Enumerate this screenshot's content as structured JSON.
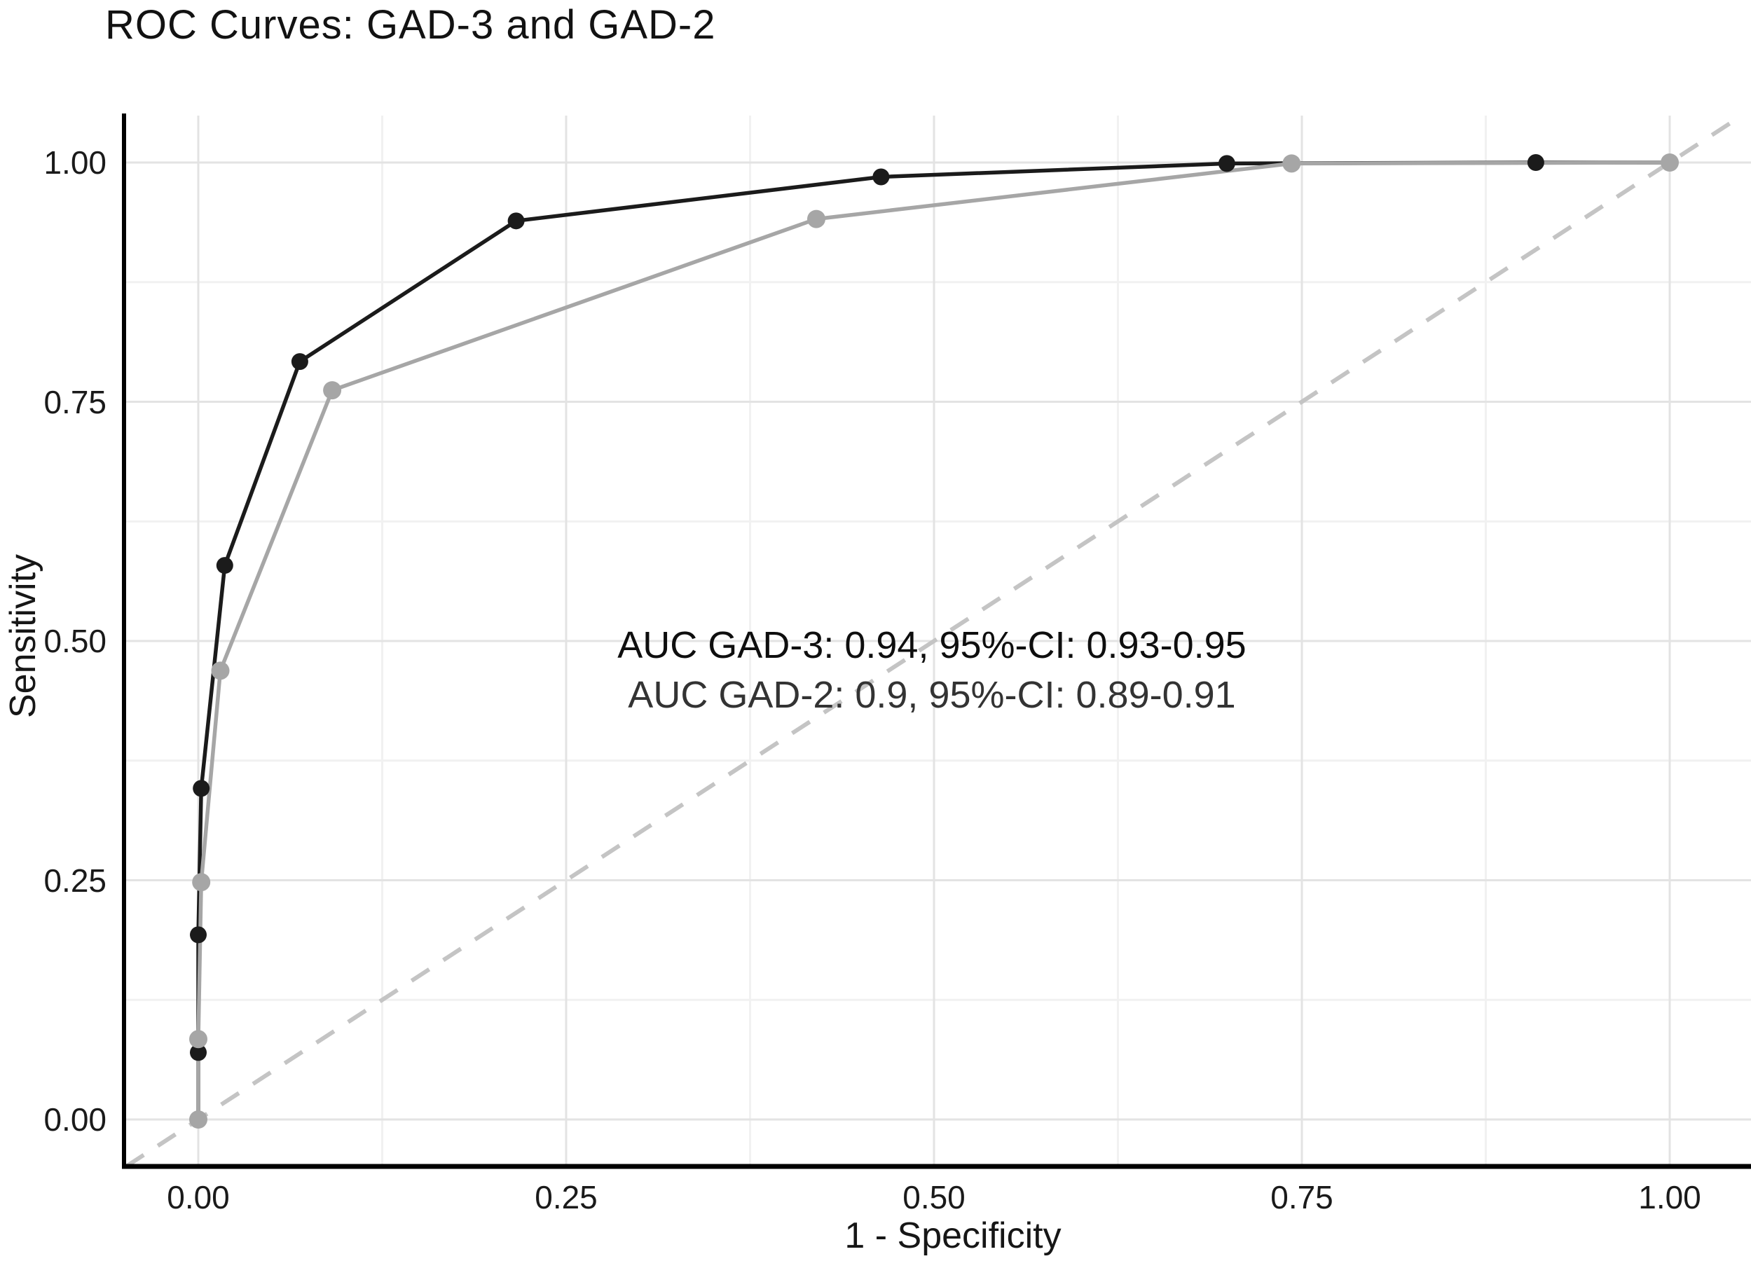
{
  "title": "ROC Curves: GAD-3 and GAD-2",
  "annotation": {
    "line1": "AUC GAD-3: 0.94, 95%-CI: 0.93-0.95",
    "line2": "AUC GAD-2: 0.9, 95%-CI: 0.89-0.91"
  },
  "chart_data": {
    "type": "line",
    "title": "ROC Curves: GAD-3 and GAD-2",
    "xlabel": "1 - Specificity",
    "ylabel": "Sensitivity",
    "xlim": [
      0,
      1
    ],
    "ylim": [
      0,
      1
    ],
    "grid": true,
    "legend_position": "none",
    "x_tick_values": [
      0,
      0.25,
      0.5,
      0.75,
      1
    ],
    "x_tick_labels": [
      "0.00",
      "0.25",
      "0.50",
      "0.75",
      "1.00"
    ],
    "y_tick_values": [
      0,
      0.25,
      0.5,
      0.75,
      1
    ],
    "y_tick_labels": [
      "0.00",
      "0.25",
      "0.50",
      "0.75",
      "1.00"
    ],
    "reference_line": {
      "type": "diagonal-identity",
      "style": "dashed",
      "color": "#c4c4c4",
      "from": [
        0,
        0
      ],
      "to": [
        1,
        1
      ]
    },
    "series": [
      {
        "name": "GAD-3",
        "color": "#1b1b1b",
        "marker": "circle",
        "points": [
          [
            0,
            0
          ],
          [
            0,
            0.07
          ],
          [
            0,
            0.193
          ],
          [
            0.002,
            0.346
          ],
          [
            0.018,
            0.579
          ],
          [
            0.069,
            0.792
          ],
          [
            0.216,
            0.939
          ],
          [
            0.464,
            0.985
          ],
          [
            0.699,
            0.999
          ],
          [
            0.909,
            1.0
          ],
          [
            1,
            1
          ]
        ]
      },
      {
        "name": "GAD-2",
        "color": "#a6a6a6",
        "marker": "circle",
        "points": [
          [
            0,
            0
          ],
          [
            0,
            0.084
          ],
          [
            0.002,
            0.248
          ],
          [
            0.015,
            0.469
          ],
          [
            0.091,
            0.762
          ],
          [
            0.42,
            0.941
          ],
          [
            0.743,
            0.999
          ],
          [
            1,
            1
          ]
        ]
      }
    ],
    "annotations": [
      "AUC GAD-3: 0.94, 95%-CI: 0.93-0.95",
      "AUC GAD-2: 0.9, 95%-CI: 0.89-0.91"
    ],
    "colors": {
      "gad3_curve": "#1b1b1b",
      "gad2_curve": "#a6a6a6",
      "diagonal": "#c4c4c4",
      "grid_major": "#e3e3e3",
      "grid_minor": "#f1f1f1",
      "axis": "#000000"
    }
  }
}
